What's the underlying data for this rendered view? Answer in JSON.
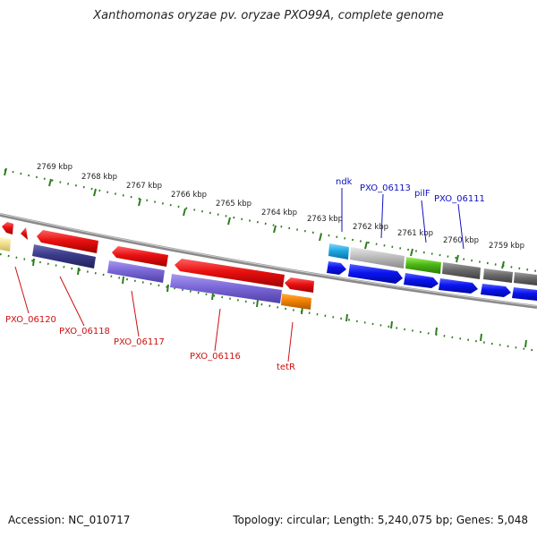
{
  "title": "Xanthomonas oryzae pv. oryzae PXO99A, complete genome",
  "footer": {
    "accession": "Accession: NC_010717",
    "summary": "Topology: circular; Length: 5,240,075 bp; Genes: 5,048"
  },
  "scale_labels": [
    "2769 kbp",
    "2768 kbp",
    "2767 kbp",
    "2766 kbp",
    "2765 kbp",
    "2764 kbp",
    "2763 kbp",
    "2762 kbp",
    "2761 kbp",
    "2760 kbp",
    "2759 kbp"
  ],
  "gene_labels_top": [
    "ndk",
    "PXO_06113",
    "pilF",
    "PXO_06111"
  ],
  "gene_labels_bottom": [
    "PXO_06120",
    "PXO_06118",
    "PXO_06117",
    "PXO_06116",
    "tetR"
  ],
  "colors": {
    "tick": "#2e7d1e",
    "backbone": "#8a8a8a",
    "label_blue": "#1010c0",
    "label_red": "#cc1010",
    "red_gene": "#e81010",
    "purple_gene": "#7b68d8",
    "navy_gene": "#3a3a8a",
    "orange_gene": "#f08000",
    "blue_gene": "#0a14f0",
    "gray_gene": "#9a9a9a",
    "green_gene": "#4cb814",
    "cyan_gene": "#20a8e0",
    "yellow_gene": "#f0e090"
  }
}
